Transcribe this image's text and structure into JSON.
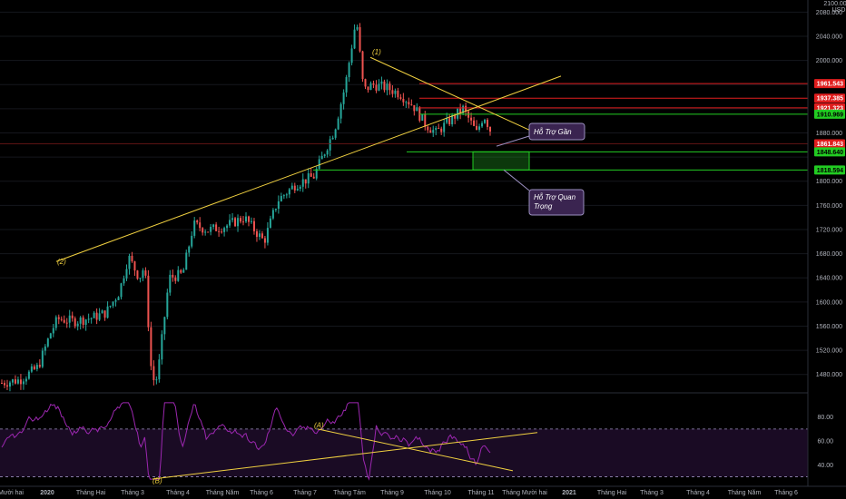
{
  "chart_data": {
    "type": "candlestick",
    "symbol_header": [
      "2100.000",
      "USD"
    ],
    "x_labels": [
      "Mười hai",
      "2020",
      "Tháng Hai",
      "Tháng 3",
      "Tháng 4",
      "Tháng Năm",
      "Tháng 6",
      "Tháng 7",
      "Tháng Tám",
      "Tháng 9",
      "Tháng 10",
      "Tháng 11",
      "Tháng Mười hai",
      "2021",
      "Tháng Hai",
      "Tháng 3",
      "Tháng 4",
      "Tháng Năm",
      "Tháng 6"
    ],
    "price_axis": {
      "ylim": [
        1451,
        2100
      ],
      "ticks": [
        "2080.000",
        "2040.000",
        "2000.000",
        "1960.000",
        "1920.000",
        "1880.000",
        "1840.000",
        "1800.000",
        "1760.000",
        "1720.000",
        "1680.000",
        "1640.000",
        "1600.000",
        "1560.000",
        "1520.000",
        "1480.000"
      ]
    },
    "price_path": {
      "index_range": [
        0,
        540
      ],
      "points": [
        [
          0,
          1466
        ],
        [
          20,
          1471
        ],
        [
          40,
          1492
        ],
        [
          55,
          1553
        ],
        [
          62,
          1572
        ],
        [
          80,
          1568
        ],
        [
          100,
          1574
        ],
        [
          115,
          1582
        ],
        [
          130,
          1617
        ],
        [
          140,
          1675
        ],
        [
          152,
          1640
        ],
        [
          158,
          1660
        ],
        [
          166,
          1470
        ],
        [
          172,
          1474
        ],
        [
          185,
          1640
        ],
        [
          200,
          1646
        ],
        [
          212,
          1728
        ],
        [
          228,
          1719
        ],
        [
          248,
          1726
        ],
        [
          268,
          1740
        ],
        [
          290,
          1700
        ],
        [
          305,
          1768
        ],
        [
          325,
          1795
        ],
        [
          345,
          1808
        ],
        [
          368,
          1886
        ],
        [
          380,
          1960
        ],
        [
          392,
          2070
        ],
        [
          400,
          1950
        ],
        [
          410,
          1960
        ],
        [
          425,
          1955
        ],
        [
          440,
          1945
        ],
        [
          455,
          1925
        ],
        [
          468,
          1895
        ],
        [
          480,
          1880
        ],
        [
          495,
          1900
        ],
        [
          510,
          1920
        ],
        [
          525,
          1880
        ],
        [
          533,
          1910
        ],
        [
          540,
          1885
        ]
      ]
    },
    "horizontal_levels": [
      {
        "price": "1961.543",
        "color": "#e01e1e"
      },
      {
        "price": "1937.385",
        "color": "#e01e1e"
      },
      {
        "price": "1921.323",
        "color": "#e01e1e"
      },
      {
        "price": "1910.969",
        "color": "#22cc22"
      },
      {
        "price": "1861.843",
        "color": "#e01e1e"
      },
      {
        "price": "1848.640",
        "color": "#22cc22"
      },
      {
        "price": "1818.594",
        "color": "#22cc22"
      }
    ],
    "annotations": {
      "wave_labels": [
        "(2)",
        "(1)",
        "(A)",
        "(B)"
      ],
      "callouts": [
        {
          "text": "Hỗ Trợ Gần"
        },
        {
          "text": "Hỗ Trợ Quan Trọng"
        }
      ]
    },
    "oscillator": {
      "ticks": [
        "80.00",
        "60.00",
        "40.00"
      ],
      "ylim": [
        25,
        95
      ],
      "bands": [
        70,
        30
      ]
    }
  }
}
